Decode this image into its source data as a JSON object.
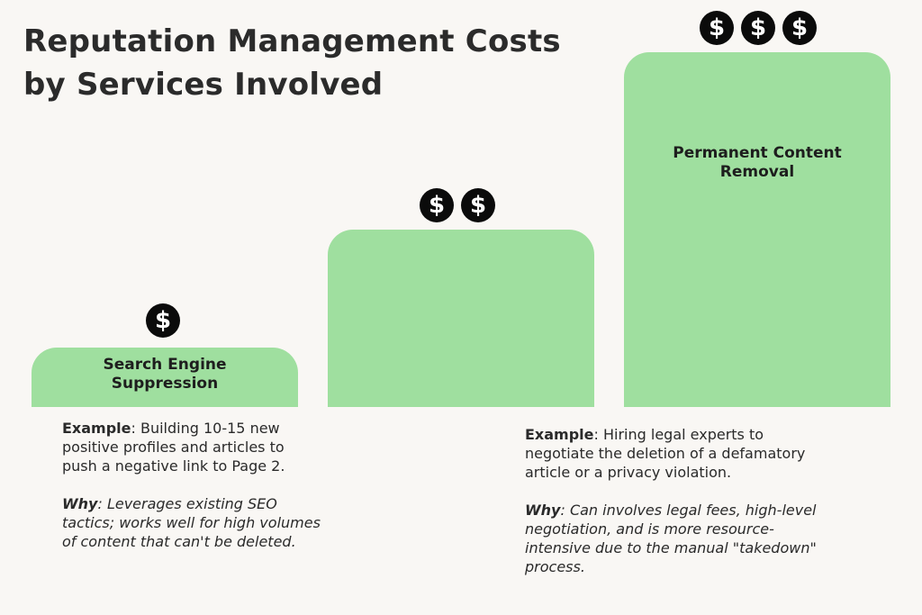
{
  "title": {
    "line1": "Reputation Management Costs",
    "line2": "by Services Involved"
  },
  "icons": {
    "cost_symbol": "dollar-coin-icon",
    "coin_glyph": "$",
    "bar_color": "#9fdf9f"
  },
  "tiers": [
    {
      "label_line1": "Search Engine",
      "label_line2": "Suppression",
      "cost_level": 1
    },
    {
      "label_line1": "",
      "label_line2": "",
      "cost_level": 2
    },
    {
      "label_line1": "Permanent Content",
      "label_line2": "Removal",
      "cost_level": 3
    }
  ],
  "notes": {
    "left": {
      "example_label": "Example",
      "example_lines": [
        ": Building 10-15 new",
        "positive profiles and articles to",
        "push a negative link to Page 2."
      ],
      "why_label": "Why",
      "why_lines": [
        ": Leverages existing SEO",
        "tactics; works well for high volumes",
        "of content that can't be deleted."
      ]
    },
    "right": {
      "example_label": "Example",
      "example_lines": [
        ": Hiring legal experts to",
        "negotiate the deletion of a defamatory",
        "article or a privacy violation."
      ],
      "why_label": "Why",
      "why_lines": [
        ": Can involves legal fees, high-level",
        "negotiation, and is more resource-",
        "intensive due to the manual \"takedown\"",
        "process."
      ]
    }
  }
}
